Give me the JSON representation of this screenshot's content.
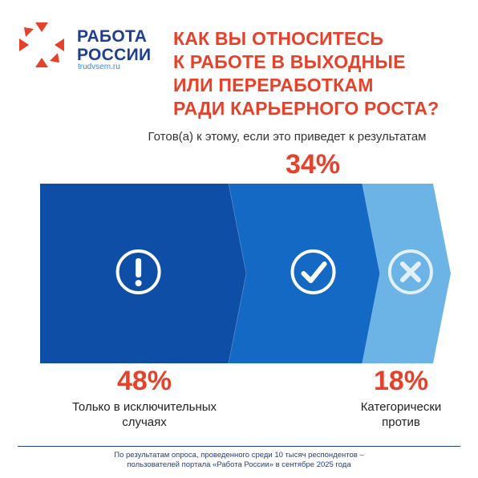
{
  "brand": {
    "name_line1": "РАБОТА",
    "name_line2": "РОССИИ",
    "site": "trudvsem.ru",
    "logo_icon": "star-cross-logo"
  },
  "headline": {
    "line1": "КАК ВЫ ОТНОСИТЕСЬ",
    "line2": "К РАБОТЕ В ВЫХОДНЫЕ",
    "line3": "ИЛИ ПЕРЕРАБОТКАМ",
    "line4": "РАДИ КАРЬЕРНОГО РОСТА?"
  },
  "colors": {
    "accent": "#e5412b",
    "brand_blue": "#1e3f8f",
    "segment_dark": "#0e4ea6",
    "segment_mid": "#1469c4",
    "segment_light": "#6cb3e6"
  },
  "chart_data": {
    "type": "bar",
    "layout": "stacked-horizontal-arrows",
    "categories": [
      "Только в исключительных случаях",
      "Готов(а) к этому, если это приведет к результатам",
      "Категорически против"
    ],
    "values": [
      48,
      34,
      18
    ],
    "labels": [
      "48%",
      "34%",
      "18%"
    ],
    "icons": [
      "exclamation-icon",
      "check-icon",
      "cross-icon"
    ]
  },
  "segments": {
    "s1": {
      "pct": "48%",
      "label_line1": "Только в исключительных",
      "label_line2": "случаях"
    },
    "s2": {
      "pct": "34%",
      "label": "Готов(а) к этому, если это приведет к результатам"
    },
    "s3": {
      "pct": "18%",
      "label_line1": "Категорически",
      "label_line2": "против"
    }
  },
  "footnote": {
    "line1": "По результатам опроса, проведенного среди 10 тысяч респондентов –",
    "line2": "пользователей портала «Работа России» в сентябре 2025 года"
  }
}
